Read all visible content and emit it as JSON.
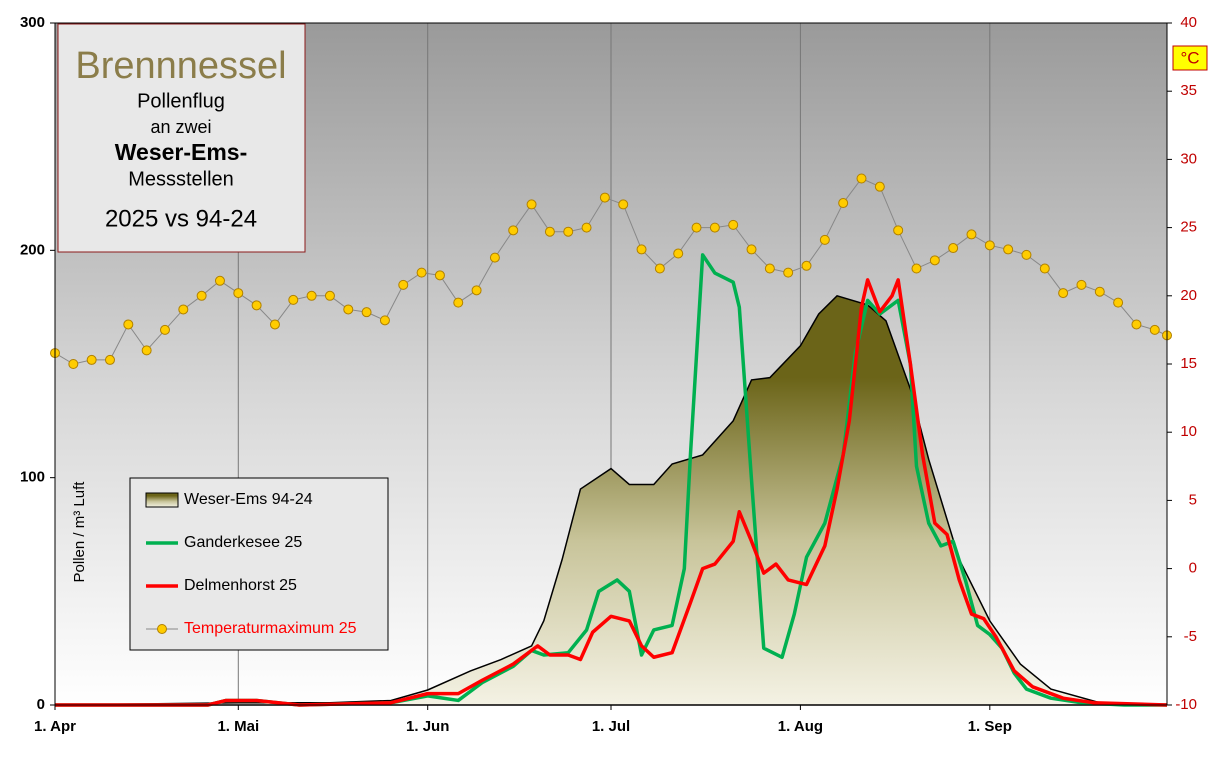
{
  "chart_data": {
    "type": "line",
    "title": "Brennnessel",
    "subtitle_lines": [
      "Pollenflug",
      "an zwei",
      "Weser-Ems-",
      "Messstellen",
      "2025 vs 94-24"
    ],
    "y_label": "Pollen / m³ Luft",
    "y2_label": "°C",
    "xlim": [
      0,
      182
    ],
    "xticks": [
      {
        "value": 0,
        "label": "1. Apr"
      },
      {
        "value": 30,
        "label": "1. Mai"
      },
      {
        "value": 61,
        "label": "1. Jun"
      },
      {
        "value": 91,
        "label": "1. Jul"
      },
      {
        "value": 122,
        "label": "1. Aug"
      },
      {
        "value": 153,
        "label": "1. Sep"
      }
    ],
    "ylim": [
      0,
      300
    ],
    "yticks": [
      0,
      100,
      200,
      300
    ],
    "y2lim": [
      -10,
      40
    ],
    "y2ticks": [
      -10,
      -5,
      0,
      5,
      10,
      15,
      20,
      25,
      30,
      35,
      40
    ],
    "grid": true,
    "series": [
      {
        "name": "Weser-Ems 94-24",
        "kind": "area",
        "color": "#000000",
        "x": [
          0,
          30,
          45,
          55,
          61,
          68,
          73,
          78,
          80,
          83,
          86,
          91,
          94,
          98,
          101,
          106,
          111,
          114,
          117,
          122,
          125,
          128,
          133,
          136,
          140,
          143,
          148,
          153,
          158,
          163,
          171,
          182
        ],
        "values": [
          0,
          1,
          1,
          2,
          6.6,
          15,
          20,
          26,
          37,
          64,
          95,
          104,
          97,
          97,
          106,
          110,
          125,
          143,
          144,
          158,
          172,
          180,
          176,
          169,
          139,
          108,
          64,
          37,
          18,
          7,
          1,
          0
        ]
      },
      {
        "name": "Ganderkesee 25",
        "kind": "line",
        "color": "#00b050",
        "x": [
          0,
          25,
          28,
          33,
          40,
          55,
          61,
          66,
          70,
          75,
          78,
          80,
          84,
          87,
          89,
          92,
          94,
          96,
          98,
          101,
          103,
          104,
          106,
          108,
          111,
          112,
          114,
          116,
          119,
          121,
          123,
          126,
          129,
          131,
          133,
          135,
          138,
          140,
          141,
          143,
          145,
          147,
          149,
          151,
          153,
          155,
          157,
          159,
          163,
          168,
          175,
          182
        ],
        "values": [
          0,
          0,
          2,
          2,
          0,
          1,
          4,
          2,
          10,
          17,
          24,
          22,
          23,
          33,
          50,
          55,
          50,
          22,
          33,
          35,
          60,
          110,
          198,
          190,
          186,
          175,
          99,
          25,
          21,
          40,
          65,
          80,
          110,
          155,
          178,
          172,
          178,
          150,
          105,
          80,
          70,
          72,
          55,
          35,
          31,
          25,
          14,
          7,
          3,
          1,
          0,
          0
        ]
      },
      {
        "name": "Delmenhorst 25",
        "kind": "line",
        "color": "#ff0000",
        "x": [
          0,
          25,
          28,
          33,
          40,
          55,
          61,
          66,
          70,
          75,
          79,
          81,
          84,
          86,
          88,
          91,
          94,
          96,
          98,
          101,
          104,
          106,
          108,
          111,
          112,
          114,
          116,
          118,
          120,
          123,
          126,
          128,
          130,
          132,
          133,
          135,
          137,
          138,
          140,
          142,
          144,
          146,
          148,
          150,
          152,
          154,
          157,
          160,
          165,
          170,
          182
        ],
        "values": [
          0,
          0,
          2,
          2,
          0,
          1,
          5,
          5,
          11,
          18,
          26,
          22,
          22,
          20,
          32,
          39,
          37,
          26,
          21,
          23,
          45,
          60,
          62,
          72,
          85,
          72,
          58,
          62,
          55,
          53,
          70,
          95,
          125,
          175,
          187,
          173,
          180,
          187,
          150,
          110,
          80,
          75,
          55,
          40,
          38,
          30,
          15,
          8,
          3,
          1,
          0
        ]
      },
      {
        "name": "Temperaturmaximum 25",
        "kind": "dots",
        "axis": "y2",
        "color": "#ffcc00",
        "x": [
          0,
          3,
          6,
          9,
          12,
          15,
          18,
          21,
          24,
          27,
          30,
          33,
          36,
          39,
          42,
          45,
          48,
          51,
          54,
          57,
          60,
          63,
          66,
          69,
          72,
          75,
          78,
          81,
          84,
          87,
          90,
          93,
          96,
          99,
          102,
          105,
          108,
          111,
          114,
          117,
          120,
          123,
          126,
          129,
          132,
          135,
          138,
          141,
          144,
          147,
          150,
          153,
          156,
          159,
          162,
          165,
          168,
          171,
          174,
          177,
          180,
          182
        ],
        "values": [
          15.8,
          15,
          15.3,
          15.3,
          17.9,
          16,
          17.5,
          19,
          20,
          21.1,
          20.2,
          19.3,
          17.9,
          19.7,
          20,
          20,
          19,
          18.8,
          18.2,
          20.8,
          21.7,
          21.5,
          19.5,
          20.4,
          22.8,
          24.8,
          26.7,
          24.7,
          24.7,
          25,
          27.2,
          26.7,
          23.4,
          22,
          23.1,
          25,
          25,
          25.2,
          23.4,
          22,
          21.7,
          22.2,
          24.1,
          26.8,
          28.6,
          28,
          24.8,
          22,
          22.6,
          23.5,
          24.5,
          23.7,
          23.4,
          23,
          22,
          20.2,
          20.8,
          20.3,
          19.5,
          17.9,
          17.5,
          17.1
        ]
      }
    ]
  }
}
